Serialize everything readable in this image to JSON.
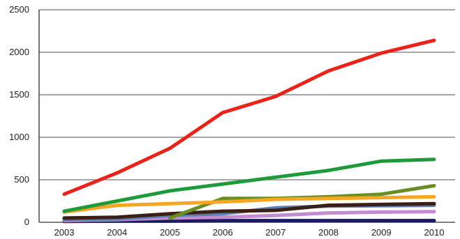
{
  "chart_data": {
    "type": "line",
    "title": "",
    "xlabel": "",
    "ylabel": "",
    "x": [
      "2003",
      "2004",
      "2005",
      "2006",
      "2007",
      "2008",
      "2009",
      "2010"
    ],
    "ylim": [
      0,
      2500
    ],
    "yticks": [
      0,
      500,
      1000,
      1500,
      2000,
      2500
    ],
    "grid": true,
    "legend": "none",
    "series": [
      {
        "color": "#e8231c",
        "values": [
          330,
          580,
          870,
          1290,
          1480,
          1780,
          1990,
          2140
        ]
      },
      {
        "color": "#1f9a3a",
        "values": [
          130,
          250,
          370,
          450,
          530,
          610,
          720,
          740
        ]
      },
      {
        "color": "#f5a623",
        "values": [
          120,
          200,
          220,
          240,
          270,
          280,
          290,
          300
        ]
      },
      {
        "color": "#6b8e23",
        "values": [
          null,
          null,
          50,
          280,
          280,
          300,
          330,
          430
        ]
      },
      {
        "color": "#3b1e14",
        "values": [
          50,
          60,
          100,
          130,
          140,
          200,
          210,
          220
        ]
      },
      {
        "color": "#5a7fb0",
        "values": [
          30,
          40,
          80,
          100,
          170,
          190,
          195,
          200
        ]
      },
      {
        "color": "#c58bd0",
        "values": [
          20,
          30,
          50,
          60,
          80,
          110,
          120,
          125
        ]
      },
      {
        "color": "#1a1a5e",
        "values": [
          10,
          15,
          15,
          20,
          20,
          20,
          20,
          20
        ]
      }
    ]
  }
}
